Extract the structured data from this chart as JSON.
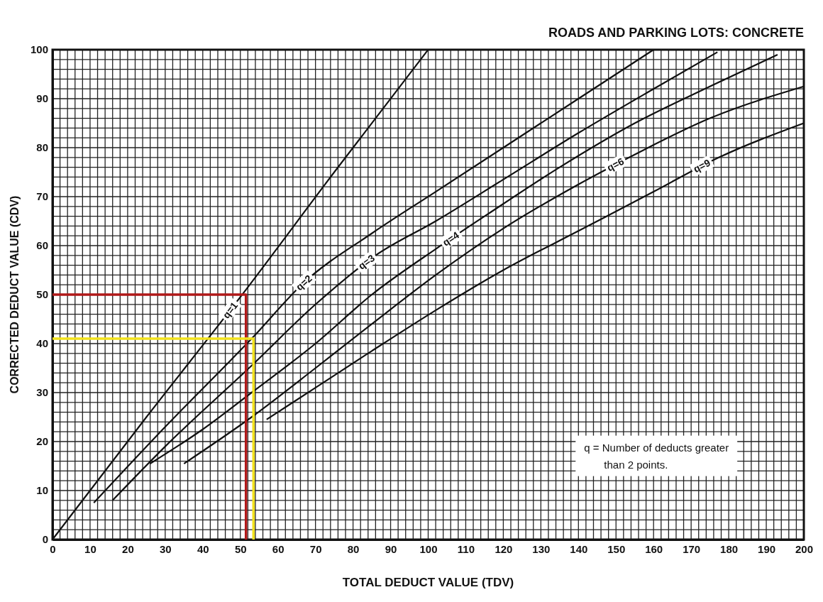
{
  "chart_data": {
    "type": "line",
    "title": "ROADS AND PARKING LOTS:  CONCRETE",
    "xlabel": "TOTAL DEDUCT VALUE (TDV)",
    "ylabel": "CORRECTED DEDUCT VALUE (CDV)",
    "xlim": [
      0,
      200
    ],
    "ylim": [
      0,
      100
    ],
    "xticks": [
      0,
      10,
      20,
      30,
      40,
      50,
      60,
      70,
      80,
      90,
      100,
      110,
      120,
      130,
      140,
      150,
      160,
      170,
      180,
      190,
      200
    ],
    "yticks": [
      0,
      10,
      20,
      30,
      40,
      50,
      60,
      70,
      80,
      90,
      100
    ],
    "grid": true,
    "marker": "none",
    "line_style": "solid",
    "series": [
      {
        "name": "q=1",
        "color": "#111111",
        "x": [
          0,
          25,
          50,
          75,
          100
        ],
        "values": [
          0,
          25,
          49.5,
          75,
          100
        ]
      },
      {
        "name": "q=2",
        "color": "#111111",
        "x": [
          11,
          30,
          53,
          67,
          85,
          102,
          120,
          140,
          160
        ],
        "values": [
          7.5,
          23,
          41,
          52.5,
          62.5,
          71,
          80,
          90,
          100
        ]
      },
      {
        "name": "q=3",
        "color": "#111111",
        "x": [
          16,
          30,
          53,
          70,
          86,
          102,
          120,
          140,
          160,
          177
        ],
        "values": [
          8,
          19,
          35.5,
          48,
          58,
          65,
          73.5,
          83,
          92,
          99.5
        ]
      },
      {
        "name": "q=4",
        "color": "#111111",
        "x": [
          26,
          40,
          53,
          70,
          85,
          102,
          116,
          135,
          155,
          175,
          193
        ],
        "values": [
          15.5,
          22.5,
          30,
          40,
          50,
          59.3,
          66.5,
          76,
          85,
          92.5,
          99
        ]
      },
      {
        "name": "q=6",
        "color": "#111111",
        "x": [
          35,
          53,
          70,
          85,
          102,
          120,
          140,
          156,
          175,
          200
        ],
        "values": [
          15.5,
          25,
          35,
          44,
          54,
          63.5,
          72.5,
          79,
          86,
          92.5
        ]
      },
      {
        "name": "q=9",
        "color": "#111111",
        "x": [
          57,
          70,
          85,
          102,
          120,
          140,
          160,
          176,
          200
        ],
        "values": [
          24.5,
          31,
          38.5,
          46.8,
          55,
          63,
          71,
          77.5,
          85
        ]
      },
      {
        "color": "#b01818",
        "x": [
          0,
          51.5,
          51.5
        ],
        "values": [
          50,
          50,
          0
        ]
      },
      {
        "color": "#f2e21c",
        "x": [
          0,
          53.5,
          53.5
        ],
        "values": [
          41,
          41,
          0
        ]
      }
    ],
    "annotations": [
      "q = Number of deducts greater than 2 points."
    ]
  }
}
